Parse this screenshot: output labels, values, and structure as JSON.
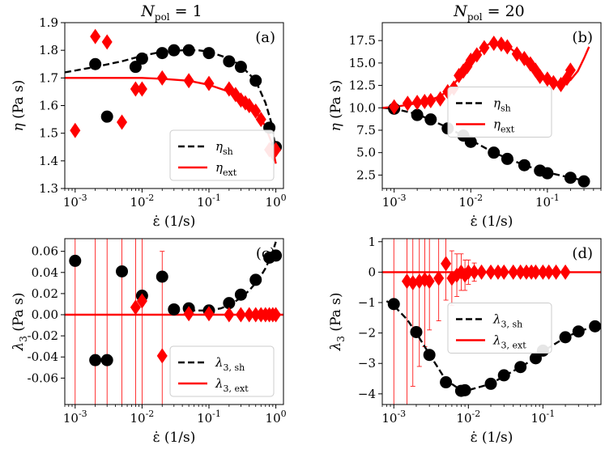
{
  "column_titles": {
    "left": {
      "base": "N",
      "sub": "pol",
      "rest": " = 1"
    },
    "right": {
      "base": "N",
      "sub": "pol",
      "rest": " = 20"
    }
  },
  "colors": {
    "shear": "#000000",
    "ext": "#ff0000"
  },
  "chart_data": [
    {
      "id": "a",
      "panel_label": "(a)",
      "type": "scatter",
      "xscale": "log",
      "xlim": [
        0.0007,
        1.3
      ],
      "ylim": [
        1.3,
        1.9
      ],
      "xticks": [
        0.001,
        0.01,
        0.1,
        1
      ],
      "xtick_labels": [
        "10",
        "10",
        "10",
        "10"
      ],
      "xtick_exps": [
        "-3",
        "-2",
        "-1",
        "0"
      ],
      "yticks": [
        1.3,
        1.4,
        1.5,
        1.6,
        1.7,
        1.8,
        1.9
      ],
      "ytick_labels": [
        "1.3",
        "1.4",
        "1.5",
        "1.6",
        "1.7",
        "1.8",
        "1.9"
      ],
      "xlabel": "ε̇ (1/s)",
      "ylabel": {
        "sym": "η",
        "unit": " (Pa s)"
      },
      "legend": {
        "position": "lower-right",
        "entries": [
          {
            "base": "η",
            "sub": "sh",
            "style": "dashed",
            "color": "#000000"
          },
          {
            "base": "η",
            "sub": "ext",
            "style": "solid",
            "color": "#ff0000"
          }
        ]
      },
      "series": [
        {
          "name": "eta_sh points",
          "marker": "circle",
          "color": "#000000",
          "x": [
            0.002,
            0.003,
            0.008,
            0.01,
            0.02,
            0.03,
            0.05,
            0.1,
            0.2,
            0.3,
            0.5,
            0.8,
            1.0
          ],
          "y": [
            1.75,
            1.56,
            1.74,
            1.77,
            1.79,
            1.8,
            1.8,
            1.79,
            1.76,
            1.74,
            1.69,
            1.52,
            1.45
          ]
        },
        {
          "name": "eta_ext points",
          "marker": "diamond",
          "color": "#ff0000",
          "x": [
            0.001,
            0.002,
            0.003,
            0.005,
            0.008,
            0.01,
            0.02,
            0.05,
            0.1,
            0.2,
            0.25,
            0.3,
            0.35,
            0.4,
            0.5,
            0.6,
            0.8,
            0.9,
            1.0
          ],
          "y": [
            1.51,
            1.85,
            1.83,
            1.54,
            1.66,
            1.66,
            1.7,
            1.69,
            1.68,
            1.66,
            1.64,
            1.62,
            1.61,
            1.6,
            1.58,
            1.55,
            1.44,
            1.43,
            1.44
          ]
        },
        {
          "name": "eta_sh fit",
          "line": "dashed",
          "color": "#000000",
          "x": [
            0.0007,
            0.002,
            0.005,
            0.01,
            0.02,
            0.04,
            0.07,
            0.1,
            0.2,
            0.3,
            0.5,
            0.7,
            0.85,
            1.0
          ],
          "y": [
            1.72,
            1.74,
            1.76,
            1.78,
            1.795,
            1.8,
            1.8,
            1.795,
            1.77,
            1.745,
            1.69,
            1.61,
            1.54,
            1.44
          ]
        },
        {
          "name": "eta_ext fit",
          "line": "solid",
          "color": "#ff0000",
          "x": [
            0.0007,
            0.003,
            0.01,
            0.02,
            0.05,
            0.1,
            0.2,
            0.3,
            0.5,
            0.7,
            0.85,
            1.0
          ],
          "y": [
            1.7,
            1.7,
            1.7,
            1.697,
            1.69,
            1.675,
            1.65,
            1.625,
            1.58,
            1.525,
            1.47,
            1.39
          ]
        }
      ]
    },
    {
      "id": "b",
      "panel_label": "(b)",
      "type": "scatter",
      "xscale": "log",
      "xlim": [
        0.0007,
        0.5
      ],
      "ylim": [
        1.0,
        19.5
      ],
      "xticks": [
        0.001,
        0.01,
        0.1
      ],
      "xtick_labels": [
        "10",
        "10",
        "10"
      ],
      "xtick_exps": [
        "-3",
        "-2",
        "-1"
      ],
      "yticks": [
        2.5,
        5.0,
        7.5,
        10.0,
        12.5,
        15.0,
        17.5
      ],
      "ytick_labels": [
        "2.5",
        "5.0",
        "7.5",
        "10.0",
        "12.5",
        "15.0",
        "17.5"
      ],
      "xlabel": "ε̇ (1/s)",
      "ylabel": {
        "sym": "η",
        "unit": " (Pa s)"
      },
      "legend": {
        "position": "center",
        "entries": [
          {
            "base": "η",
            "sub": "sh",
            "style": "dashed",
            "color": "#000000"
          },
          {
            "base": "η",
            "sub": "ext",
            "style": "solid",
            "color": "#ff0000"
          }
        ]
      },
      "series": [
        {
          "name": "eta_sh points",
          "marker": "circle",
          "color": "#000000",
          "x": [
            0.001,
            0.002,
            0.003,
            0.005,
            0.008,
            0.01,
            0.02,
            0.03,
            0.05,
            0.08,
            0.1,
            0.2,
            0.3
          ],
          "y": [
            9.9,
            9.2,
            8.7,
            7.7,
            6.9,
            6.2,
            5.0,
            4.3,
            3.6,
            3.0,
            2.7,
            2.2,
            1.8
          ]
        },
        {
          "name": "eta_ext points",
          "marker": "diamond",
          "color": "#ff0000",
          "x": [
            0.001,
            0.0015,
            0.002,
            0.0025,
            0.003,
            0.004,
            0.005,
            0.006,
            0.007,
            0.008,
            0.009,
            0.01,
            0.012,
            0.015,
            0.02,
            0.025,
            0.03,
            0.04,
            0.05,
            0.06,
            0.07,
            0.08,
            0.1,
            0.12,
            0.15,
            0.18,
            0.2
          ],
          "y": [
            10.1,
            10.5,
            10.6,
            10.7,
            10.8,
            11.0,
            11.8,
            12.2,
            13.6,
            14.1,
            14.6,
            15.3,
            15.9,
            16.7,
            17.2,
            17.1,
            16.8,
            16.0,
            15.5,
            14.9,
            14.2,
            13.5,
            13.2,
            12.8,
            12.6,
            13.3,
            14.2
          ]
        },
        {
          "name": "eta_sh fit",
          "line": "dashed",
          "color": "#000000",
          "x": [
            0.0007,
            0.001,
            0.002,
            0.005,
            0.01,
            0.02,
            0.05,
            0.1,
            0.2,
            0.3
          ],
          "y": [
            10.0,
            9.9,
            9.3,
            7.8,
            6.4,
            5.0,
            3.6,
            2.8,
            2.2,
            1.9
          ]
        },
        {
          "name": "eta_ext fit",
          "line": "solid",
          "color": "#ff0000",
          "x": [
            0.0007,
            0.001,
            0.002,
            0.003,
            0.004,
            0.005,
            0.007,
            0.01,
            0.015,
            0.02,
            0.03,
            0.05,
            0.07,
            0.1,
            0.15,
            0.2,
            0.25,
            0.3,
            0.35
          ],
          "y": [
            10.0,
            10.1,
            10.5,
            10.9,
            11.3,
            11.9,
            13.3,
            15.1,
            16.8,
            17.4,
            16.9,
            15.4,
            14.1,
            13.2,
            12.6,
            13.1,
            14.1,
            15.5,
            16.8
          ]
        }
      ]
    },
    {
      "id": "c",
      "panel_label": "(c)",
      "type": "scatter",
      "xscale": "log",
      "xlim": [
        0.0007,
        1.3
      ],
      "ylim": [
        -0.085,
        0.072
      ],
      "xticks": [
        0.001,
        0.01,
        0.1,
        1
      ],
      "xtick_labels": [
        "10",
        "10",
        "10",
        "10"
      ],
      "xtick_exps": [
        "-3",
        "-2",
        "-1",
        "0"
      ],
      "yticks": [
        -0.06,
        -0.04,
        -0.02,
        0.0,
        0.02,
        0.04,
        0.06
      ],
      "ytick_labels": [
        "-0.06",
        "-0.04",
        "-0.02",
        "0.00",
        "0.02",
        "0.04",
        "0.06"
      ],
      "xlabel": "ε̇ (1/s)",
      "ylabel": {
        "sym": "λ",
        "sub": "3",
        "unit": " (Pa s)"
      },
      "legend": {
        "position": "lower-right",
        "entries": [
          {
            "base": "λ",
            "sub": "3, sh",
            "style": "dashed",
            "color": "#000000"
          },
          {
            "base": "λ",
            "sub": "3, ext",
            "style": "solid",
            "color": "#ff0000"
          }
        ]
      },
      "series": [
        {
          "name": "lambda3_sh points",
          "marker": "circle",
          "color": "#000000",
          "x": [
            0.001,
            0.002,
            0.003,
            0.005,
            0.01,
            0.02,
            0.03,
            0.05,
            0.1,
            0.2,
            0.3,
            0.5,
            0.8,
            1.0
          ],
          "y": [
            0.051,
            -0.043,
            -0.043,
            0.041,
            0.018,
            0.036,
            0.005,
            0.006,
            0.004,
            0.011,
            0.019,
            0.033,
            0.054,
            0.056
          ]
        },
        {
          "name": "lambda3_ext points",
          "marker": "diamond",
          "color": "#ff0000",
          "x": [
            0.008,
            0.01,
            0.02,
            0.05,
            0.1,
            0.2,
            0.3,
            0.4,
            0.5,
            0.6,
            0.7,
            0.8,
            0.9,
            1.0
          ],
          "y": [
            0.007,
            0.013,
            -0.039,
            0.001,
            0.001,
            0.0,
            0.0,
            0.0,
            0.0,
            0.0,
            0.0,
            0.0,
            0.0,
            0.0
          ],
          "errorbars": [
            {
              "x": 0.001,
              "y": 0.0,
              "err": 0.1
            },
            {
              "x": 0.002,
              "y": 0.0,
              "err": 0.1
            },
            {
              "x": 0.003,
              "y": 0.0,
              "err": 0.1
            },
            {
              "x": 0.005,
              "y": 0.0,
              "err": 0.1
            },
            {
              "x": 0.008,
              "y": 0.007,
              "err": 0.1
            },
            {
              "x": 0.01,
              "y": 0.013,
              "err": 0.1
            },
            {
              "x": 0.02,
              "y": -0.039,
              "err": 0.099
            }
          ]
        },
        {
          "name": "lambda3_sh fit",
          "line": "dashed",
          "color": "#000000",
          "x": [
            0.05,
            0.1,
            0.15,
            0.2,
            0.3,
            0.4,
            0.5,
            0.6,
            0.7,
            0.8,
            0.9,
            1.0
          ],
          "y": [
            0.004,
            0.004,
            0.006,
            0.009,
            0.016,
            0.023,
            0.03,
            0.037,
            0.044,
            0.052,
            0.06,
            0.069
          ]
        },
        {
          "name": "lambda3_ext fit",
          "line": "solid",
          "color": "#ff0000",
          "x": [
            0.0007,
            1.3
          ],
          "y": [
            0.0,
            0.0
          ]
        }
      ]
    },
    {
      "id": "d",
      "panel_label": "(d)",
      "type": "scatter",
      "xscale": "log",
      "xlim": [
        0.0007,
        0.6
      ],
      "ylim": [
        -4.35,
        1.1
      ],
      "xticks": [
        0.001,
        0.01,
        0.1
      ],
      "xtick_labels": [
        "10",
        "10",
        "10"
      ],
      "xtick_exps": [
        "-3",
        "-2",
        "-1"
      ],
      "yticks": [
        -4,
        -3,
        -2,
        -1,
        0,
        1
      ],
      "ytick_labels": [
        "−4",
        "−3",
        "−2",
        "−1",
        "0",
        "1"
      ],
      "xlabel": "ε̇ (1/s)",
      "ylabel": {
        "sym": "λ",
        "sub": "3",
        "unit": " (Pa s)"
      },
      "legend": {
        "position": "center",
        "entries": [
          {
            "base": "λ",
            "sub": "3, sh",
            "style": "dashed",
            "color": "#000000"
          },
          {
            "base": "λ",
            "sub": "3, ext",
            "style": "solid",
            "color": "#ff0000"
          }
        ]
      },
      "series": [
        {
          "name": "lambda3_sh points",
          "marker": "circle",
          "color": "#000000",
          "x": [
            0.001,
            0.002,
            0.003,
            0.005,
            0.008,
            0.009,
            0.02,
            0.03,
            0.05,
            0.08,
            0.1,
            0.2,
            0.3,
            0.5
          ],
          "y": [
            -1.05,
            -1.97,
            -2.72,
            -3.62,
            -3.9,
            -3.88,
            -3.67,
            -3.39,
            -3.12,
            -2.83,
            -2.58,
            -2.14,
            -1.95,
            -1.78
          ]
        },
        {
          "name": "lambda3_ext points",
          "marker": "diamond",
          "color": "#ff0000",
          "x": [
            0.0015,
            0.0018,
            0.0022,
            0.0026,
            0.003,
            0.004,
            0.005,
            0.006,
            0.007,
            0.008,
            0.009,
            0.01,
            0.012,
            0.015,
            0.02,
            0.025,
            0.03,
            0.04,
            0.05,
            0.06,
            0.07,
            0.08,
            0.1,
            0.12,
            0.15,
            0.2
          ],
          "y": [
            -0.3,
            -0.35,
            -0.3,
            -0.25,
            -0.3,
            -0.2,
            0.28,
            -0.2,
            -0.1,
            0.0,
            -0.1,
            0.0,
            0.0,
            0.0,
            0.0,
            0.0,
            0.0,
            0.0,
            0.0,
            0.0,
            0.0,
            0.0,
            0.0,
            0.0,
            0.0,
            0.0
          ],
          "errorbars": [
            {
              "x": 0.001,
              "y": 0.0,
              "err": 4.7
            },
            {
              "x": 0.0015,
              "y": -0.3,
              "err": 4.2
            },
            {
              "x": 0.0018,
              "y": -0.35,
              "err": 3.4
            },
            {
              "x": 0.0022,
              "y": -0.3,
              "err": 2.8
            },
            {
              "x": 0.0026,
              "y": -0.25,
              "err": 2.2
            },
            {
              "x": 0.003,
              "y": -0.3,
              "err": 1.6
            },
            {
              "x": 0.004,
              "y": -0.2,
              "err": 1.4
            },
            {
              "x": 0.005,
              "y": 0.28,
              "err": 1.2
            },
            {
              "x": 0.006,
              "y": -0.2,
              "err": 0.9
            },
            {
              "x": 0.007,
              "y": -0.1,
              "err": 0.7
            },
            {
              "x": 0.008,
              "y": 0.0,
              "err": 0.6
            },
            {
              "x": 0.009,
              "y": -0.1,
              "err": 0.5
            },
            {
              "x": 0.01,
              "y": 0.0,
              "err": 0.4
            },
            {
              "x": 0.012,
              "y": 0.0,
              "err": 0.3
            }
          ]
        },
        {
          "name": "lambda3_sh fit",
          "line": "dashed",
          "color": "#000000",
          "x": [
            0.0008,
            0.001,
            0.0015,
            0.002,
            0.003,
            0.005,
            0.008,
            0.01,
            0.02,
            0.03,
            0.05,
            0.08,
            0.1,
            0.2,
            0.3,
            0.5
          ],
          "y": [
            -0.95,
            -1.1,
            -1.55,
            -2.0,
            -2.7,
            -3.55,
            -3.88,
            -3.88,
            -3.67,
            -3.42,
            -3.12,
            -2.82,
            -2.6,
            -2.15,
            -1.95,
            -1.78
          ]
        },
        {
          "name": "lambda3_ext fit",
          "line": "solid",
          "color": "#ff0000",
          "x": [
            0.0007,
            0.6
          ],
          "y": [
            0.0,
            0.0
          ]
        }
      ]
    }
  ]
}
